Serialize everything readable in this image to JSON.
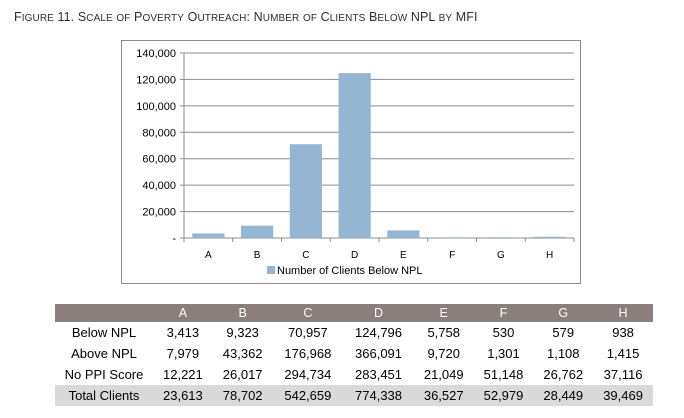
{
  "figure_title": "Figure 11. Scale of Poverty Outreach: Number of Clients Below NPL by MFI",
  "chart_data": {
    "type": "bar",
    "categories": [
      "A",
      "B",
      "C",
      "D",
      "E",
      "F",
      "G",
      "H"
    ],
    "series": [
      {
        "name": "Number of Clients Below NPL",
        "values": [
          3413,
          9323,
          70957,
          124796,
          5758,
          530,
          579,
          938
        ],
        "color": "#94b6d3"
      }
    ],
    "ylim": [
      0,
      140000
    ],
    "ytick_values": [
      0,
      20000,
      40000,
      60000,
      80000,
      100000,
      120000,
      140000
    ],
    "ytick_labels": [
      "-",
      "20,000",
      "40,000",
      "60,000",
      "80,000",
      "100,000",
      "120,000",
      "140,000"
    ],
    "grid": true,
    "legend": "bottom",
    "title": "",
    "xlabel": "",
    "ylabel": ""
  },
  "table": {
    "columns": [
      "A",
      "B",
      "C",
      "D",
      "E",
      "F",
      "G",
      "H"
    ],
    "rows": [
      {
        "label": "Below NPL",
        "values": [
          "3,413",
          "9,323",
          "70,957",
          "124,796",
          "5,758",
          "530",
          "579",
          "938"
        ]
      },
      {
        "label": "Above NPL",
        "values": [
          "7,979",
          "43,362",
          "176,968",
          "366,091",
          "9,720",
          "1,301",
          "1,108",
          "1,415"
        ]
      },
      {
        "label": "No PPI Score",
        "values": [
          "12,221",
          "26,017",
          "294,734",
          "283,451",
          "21,049",
          "51,148",
          "26,762",
          "37,116"
        ]
      },
      {
        "label": "Total Clients",
        "values": [
          "23,613",
          "78,702",
          "542,659",
          "774,338",
          "36,527",
          "52,979",
          "28,449",
          "39,469"
        ]
      }
    ]
  }
}
